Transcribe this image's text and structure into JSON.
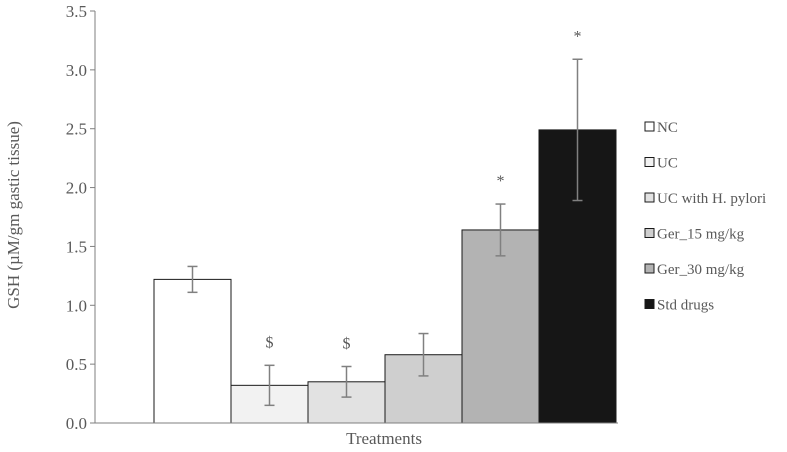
{
  "chart_data": {
    "type": "bar",
    "title": "",
    "xlabel": "Treatments",
    "ylabel": "GSH (µM/gm gastic tissue)",
    "ylim": [
      0,
      3.5
    ],
    "yticks": [
      "0.0",
      "0.5",
      "1.0",
      "1.5",
      "2.0",
      "2.5",
      "3.0",
      "3.5"
    ],
    "grid": false,
    "legend_position": "right",
    "series": [
      {
        "name": "NC",
        "value": 1.22,
        "error": 0.11,
        "annotation": "",
        "color": "#ffffff"
      },
      {
        "name": "UC",
        "value": 0.32,
        "error": 0.17,
        "annotation": "$",
        "color": "#f2f2f2"
      },
      {
        "name": "UC with H. pylori",
        "value": 0.35,
        "error": 0.13,
        "annotation": "$",
        "color": "#e2e2e2"
      },
      {
        "name": "Ger_15 mg/kg",
        "value": 0.58,
        "error": 0.18,
        "annotation": "",
        "color": "#cfcfcf"
      },
      {
        "name": "Ger_30 mg/kg",
        "value": 1.64,
        "error": 0.22,
        "annotation": "*",
        "color": "#b3b3b3"
      },
      {
        "name": "Std drugs",
        "value": 2.49,
        "error": 0.6,
        "annotation": "*",
        "color": "#161616"
      }
    ]
  }
}
